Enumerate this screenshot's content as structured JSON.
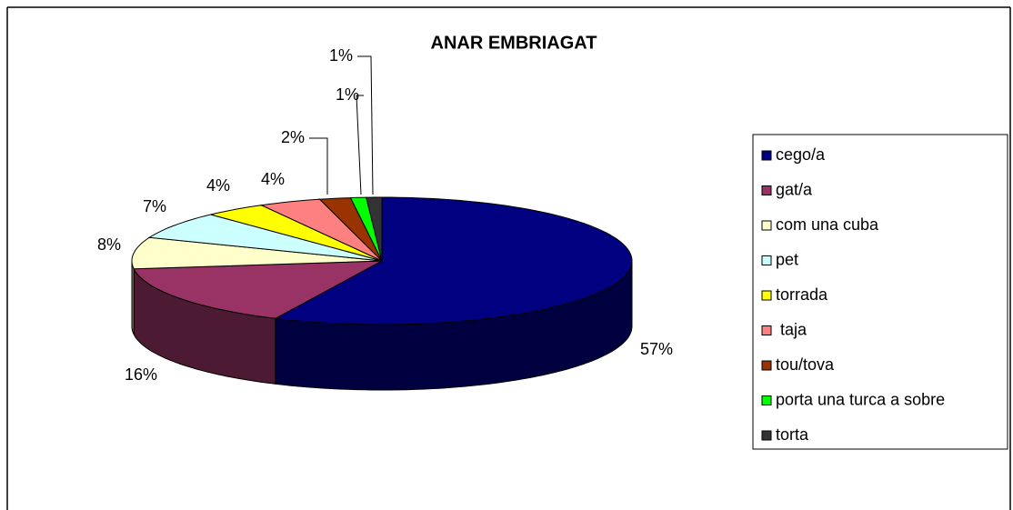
{
  "chart_data": {
    "type": "pie",
    "title": "ANAR EMBRIAGAT",
    "categories": [
      "cego/a",
      "gat/a",
      "com una cuba",
      "pet",
      "torrada",
      " taja",
      "tou/tova",
      "porta una turca a sobre",
      "torta"
    ],
    "values": [
      57,
      16,
      8,
      7,
      4,
      4,
      2,
      1,
      1
    ],
    "value_labels": [
      "57%",
      "16%",
      "8%",
      "7%",
      "4%",
      "4%",
      "2%",
      "1%",
      "1%"
    ],
    "colors": [
      "#000080",
      "#993366",
      "#FFFFCC",
      "#CCFFFF",
      "#FFFF00",
      "#FF8080",
      "#993300",
      "#00FF00",
      "#333333"
    ],
    "legend": "right"
  }
}
